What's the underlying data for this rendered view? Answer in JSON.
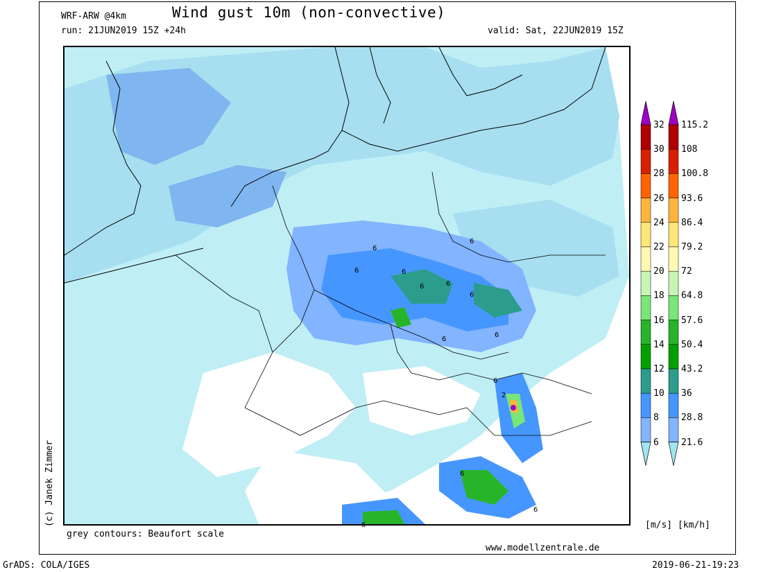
{
  "header": {
    "model": "WRF-ARW @4km",
    "title": "Wind gust 10m (non-convective)",
    "run": "run: 21JUN2019 15Z +24h",
    "valid": "valid: Sat, 22JUN2019 15Z"
  },
  "author": "(c) Janek Zimmer",
  "contour_note": "grey contours: Beaufort scale",
  "website": "www.modellzentrale.de",
  "footer": {
    "left": "GrADS: COLA/IGES",
    "right": "2019-06-21-19:23"
  },
  "units": "[m/s] [km/h]",
  "colorbar": {
    "ms_ticks": [
      "32",
      "30",
      "28",
      "26",
      "24",
      "22",
      "20",
      "18",
      "16",
      "14",
      "12",
      "10",
      "8",
      "6"
    ],
    "kmh_ticks": [
      "115.2",
      "108",
      "100.8",
      "93.6",
      "86.4",
      "79.2",
      "72",
      "64.8",
      "57.6",
      "50.4",
      "43.2",
      "36",
      "28.8",
      "21.6"
    ],
    "colors": [
      "#a000c8",
      "#b00000",
      "#d82000",
      "#ff6400",
      "#ffb43c",
      "#ffe678",
      "#fff8b4",
      "#c8f5b4",
      "#78e678",
      "#28b428",
      "#00a000",
      "#2c9c8c",
      "#4696ff",
      "#82b4ff",
      "#a0e6f0"
    ]
  },
  "map_labels": {
    "beaufort": [
      "6",
      "6",
      "6",
      "6",
      "6",
      "6",
      "6",
      "6",
      "6",
      "6",
      "6",
      "6",
      "6",
      "2"
    ]
  }
}
